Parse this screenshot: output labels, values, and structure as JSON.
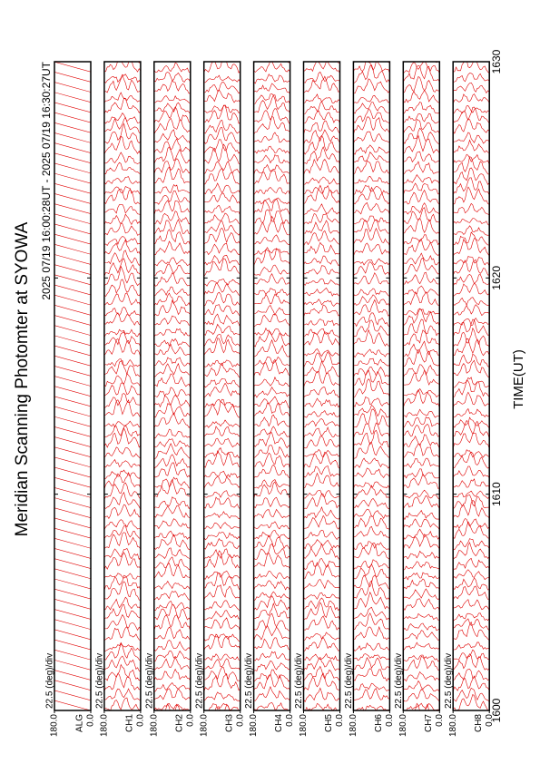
{
  "chart_data": {
    "type": "line",
    "title": "Meridian Scanning Photomter at SYOWA",
    "subtitle": "2025 07/19 16:00:28UT - 2025 07/19 16:30:27UT",
    "x_label": "TIME(UT)",
    "xlim": [
      1600,
      1630
    ],
    "xticks": [
      1600,
      1610,
      1620,
      1630
    ],
    "color": "#e00000",
    "panels": [
      {
        "label": "ALG",
        "scale_label": "22.5 (deg)/div",
        "ylim": [
          0,
          180
        ],
        "yticks": [
          {
            "value": 0,
            "label": "0.0"
          },
          {
            "value": 180,
            "label": "180.0"
          }
        ]
      },
      {
        "label": "CH1",
        "scale_label": "22.5 (deg)/div",
        "ylim": [
          0,
          180
        ],
        "yticks": [
          {
            "value": 0,
            "label": "0.0"
          },
          {
            "value": 180,
            "label": "180.0"
          }
        ]
      },
      {
        "label": "CH2",
        "scale_label": "22.5 (deg)/div",
        "ylim": [
          0,
          180
        ],
        "yticks": [
          {
            "value": 0,
            "label": "0.0"
          },
          {
            "value": 180,
            "label": "180.0"
          }
        ]
      },
      {
        "label": "CH3",
        "scale_label": "22.5 (deg)/div",
        "ylim": [
          0,
          180
        ],
        "yticks": [
          {
            "value": 0,
            "label": "0.0"
          },
          {
            "value": 180,
            "label": "180.0"
          }
        ]
      },
      {
        "label": "CH4",
        "scale_label": "22.5 (deg)/div",
        "ylim": [
          0,
          180
        ],
        "yticks": [
          {
            "value": 0,
            "label": "0.0"
          },
          {
            "value": 180,
            "label": "180.0"
          }
        ]
      },
      {
        "label": "CH5",
        "scale_label": "22.5 (deg)/div",
        "ylim": [
          0,
          180
        ],
        "yticks": [
          {
            "value": 0,
            "label": "0.0"
          },
          {
            "value": 180,
            "label": "180.0"
          }
        ]
      },
      {
        "label": "CH6",
        "scale_label": "22.5 (deg)/div",
        "ylim": [
          0,
          180
        ],
        "yticks": [
          {
            "value": 0,
            "label": "0.0"
          },
          {
            "value": 180,
            "label": "180.0"
          }
        ]
      },
      {
        "label": "CH7",
        "scale_label": "22.5 (deg)/div",
        "ylim": [
          0,
          180
        ],
        "yticks": [
          {
            "value": 0,
            "label": "0.0"
          },
          {
            "value": 180,
            "label": "180.0"
          }
        ]
      },
      {
        "label": "CH8",
        "scale_label": "22.5 (deg)/div",
        "ylim": [
          0,
          180
        ],
        "yticks": [
          {
            "value": 0,
            "label": "0.0"
          },
          {
            "value": 180,
            "label": "180.0"
          }
        ]
      }
    ]
  }
}
